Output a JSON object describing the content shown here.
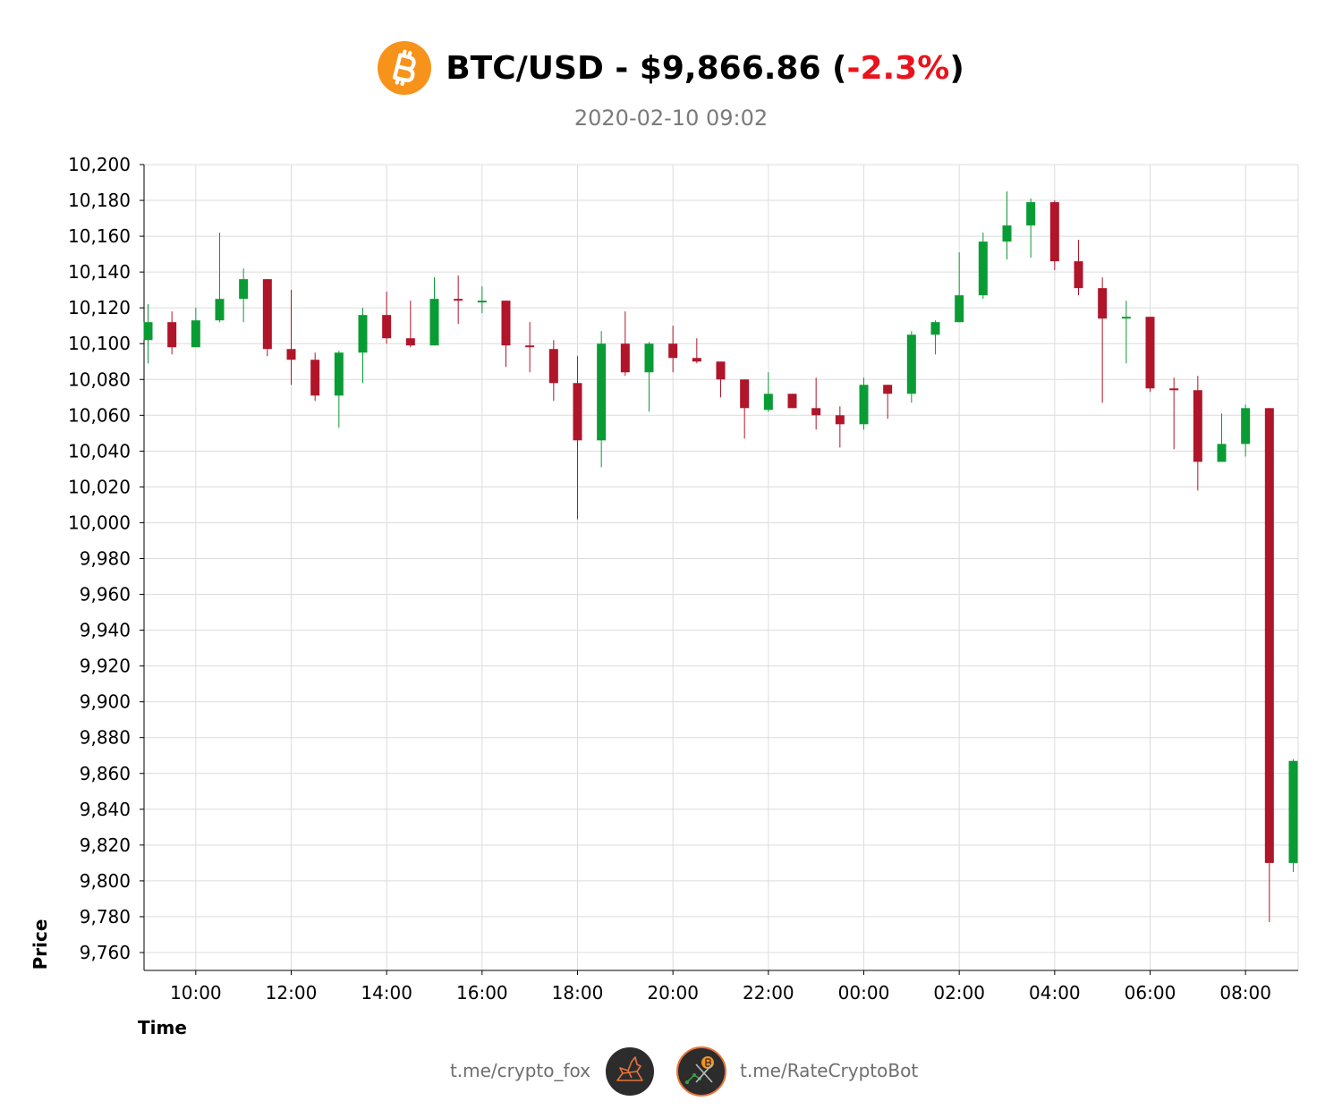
{
  "header": {
    "title_prefix": "BTC/USD - $9,866.86 (",
    "change": "-2.3%",
    "title_suffix": ")",
    "subtitle": "2020-02-10 09:02",
    "logo_icon": "bitcoin-logo-icon",
    "logo_color": "#f7931a",
    "negative_color": "#e8141c"
  },
  "footer": {
    "left_link": "t.me/crypto_fox",
    "right_link": "t.me/RateCryptoBot",
    "left_icon": "fox-avatar-icon",
    "right_icon": "rate-crypto-bot-avatar-icon"
  },
  "chart_data": {
    "type": "candlestick",
    "xlabel": "Time",
    "ylabel": "Price",
    "ylim": [
      9750,
      10200
    ],
    "x_ticks": [
      "10:00",
      "12:00",
      "14:00",
      "16:00",
      "18:00",
      "20:00",
      "22:00",
      "00:00",
      "02:00",
      "04:00",
      "06:00",
      "08:00"
    ],
    "y_ticks": [
      "10,200",
      "10,180",
      "10,160",
      "10,140",
      "10,120",
      "10,100",
      "10,080",
      "10,060",
      "10,040",
      "10,020",
      "10,000",
      "9,980",
      "9,960",
      "9,940",
      "9,920",
      "9,900",
      "9,880",
      "9,860",
      "9,840",
      "9,820",
      "9,800",
      "9,780",
      "9,760"
    ],
    "grid": true,
    "up_color": "#0a9c34",
    "down_color": "#b0152a",
    "candles": [
      {
        "time": "2020-02-09 09:00",
        "open": 10102,
        "high": 10122,
        "low": 10089,
        "close": 10112
      },
      {
        "time": "2020-02-09 09:30",
        "open": 10112,
        "high": 10118,
        "low": 10094,
        "close": 10098
      },
      {
        "time": "2020-02-09 10:00",
        "open": 10098,
        "high": 10120,
        "low": 10098,
        "close": 10113
      },
      {
        "time": "2020-02-09 10:30",
        "open": 10113,
        "high": 10162,
        "low": 10112,
        "close": 10125
      },
      {
        "time": "2020-02-09 11:00",
        "open": 10125,
        "high": 10142,
        "low": 10112,
        "close": 10136
      },
      {
        "time": "2020-02-09 11:30",
        "open": 10136,
        "high": 10136,
        "low": 10093,
        "close": 10097
      },
      {
        "time": "2020-02-09 12:00",
        "open": 10097,
        "high": 10130,
        "low": 10077,
        "close": 10091
      },
      {
        "time": "2020-02-09 12:30",
        "open": 10091,
        "high": 10095,
        "low": 10068,
        "close": 10071
      },
      {
        "time": "2020-02-09 13:00",
        "open": 10071,
        "high": 10096,
        "low": 10053,
        "close": 10095
      },
      {
        "time": "2020-02-09 13:30",
        "open": 10095,
        "high": 10120,
        "low": 10078,
        "close": 10116
      },
      {
        "time": "2020-02-09 14:00",
        "open": 10116,
        "high": 10129,
        "low": 10100,
        "close": 10103
      },
      {
        "time": "2020-02-09 14:30",
        "open": 10103,
        "high": 10124,
        "low": 10098,
        "close": 10099
      },
      {
        "time": "2020-02-09 15:00",
        "open": 10099,
        "high": 10137,
        "low": 10099,
        "close": 10125
      },
      {
        "time": "2020-02-09 15:30",
        "open": 10125,
        "high": 10138,
        "low": 10111,
        "close": 10124
      },
      {
        "time": "2020-02-09 16:00",
        "open": 10124,
        "high": 10132,
        "low": 10117,
        "close": 10124
      },
      {
        "time": "2020-02-09 16:30",
        "open": 10124,
        "high": 10124,
        "low": 10087,
        "close": 10099
      },
      {
        "time": "2020-02-09 17:00",
        "open": 10099,
        "high": 10112,
        "low": 10084,
        "close": 10098
      },
      {
        "time": "2020-02-09 17:30",
        "open": 10097,
        "high": 10102,
        "low": 10068,
        "close": 10078
      },
      {
        "time": "2020-02-09 18:00",
        "open": 10078,
        "high": 10093,
        "low": 10002,
        "close": 10046
      },
      {
        "time": "2020-02-09 18:30",
        "open": 10046,
        "high": 10107,
        "low": 10031,
        "close": 10100
      },
      {
        "time": "2020-02-09 19:00",
        "open": 10100,
        "high": 10118,
        "low": 10082,
        "close": 10084
      },
      {
        "time": "2020-02-09 19:30",
        "open": 10084,
        "high": 10101,
        "low": 10062,
        "close": 10100
      },
      {
        "time": "2020-02-09 20:00",
        "open": 10100,
        "high": 10110,
        "low": 10084,
        "close": 10092
      },
      {
        "time": "2020-02-09 20:30",
        "open": 10092,
        "high": 10103,
        "low": 10089,
        "close": 10090
      },
      {
        "time": "2020-02-09 21:00",
        "open": 10090,
        "high": 10090,
        "low": 10070,
        "close": 10080
      },
      {
        "time": "2020-02-09 21:30",
        "open": 10080,
        "high": 10080,
        "low": 10047,
        "close": 10064
      },
      {
        "time": "2020-02-09 22:00",
        "open": 10063,
        "high": 10084,
        "low": 10062,
        "close": 10072
      },
      {
        "time": "2020-02-09 22:30",
        "open": 10072,
        "high": 10072,
        "low": 10064,
        "close": 10064
      },
      {
        "time": "2020-02-09 23:00",
        "open": 10064,
        "high": 10081,
        "low": 10052,
        "close": 10060
      },
      {
        "time": "2020-02-09 23:30",
        "open": 10060,
        "high": 10065,
        "low": 10042,
        "close": 10055
      },
      {
        "time": "2020-02-10 00:00",
        "open": 10055,
        "high": 10081,
        "low": 10052,
        "close": 10077
      },
      {
        "time": "2020-02-10 00:30",
        "open": 10077,
        "high": 10077,
        "low": 10058,
        "close": 10072
      },
      {
        "time": "2020-02-10 01:00",
        "open": 10072,
        "high": 10107,
        "low": 10067,
        "close": 10105
      },
      {
        "time": "2020-02-10 01:30",
        "open": 10105,
        "high": 10113,
        "low": 10094,
        "close": 10112
      },
      {
        "time": "2020-02-10 02:00",
        "open": 10112,
        "high": 10151,
        "low": 10112,
        "close": 10127
      },
      {
        "time": "2020-02-10 02:30",
        "open": 10127,
        "high": 10162,
        "low": 10125,
        "close": 10157
      },
      {
        "time": "2020-02-10 03:00",
        "open": 10157,
        "high": 10185,
        "low": 10147,
        "close": 10166
      },
      {
        "time": "2020-02-10 03:30",
        "open": 10166,
        "high": 10181,
        "low": 10148,
        "close": 10179
      },
      {
        "time": "2020-02-10 04:00",
        "open": 10179,
        "high": 10180,
        "low": 10141,
        "close": 10146
      },
      {
        "time": "2020-02-10 04:30",
        "open": 10146,
        "high": 10158,
        "low": 10127,
        "close": 10131
      },
      {
        "time": "2020-02-10 05:00",
        "open": 10131,
        "high": 10137,
        "low": 10067,
        "close": 10114
      },
      {
        "time": "2020-02-10 05:30",
        "open": 10114,
        "high": 10124,
        "low": 10089,
        "close": 10115
      },
      {
        "time": "2020-02-10 06:00",
        "open": 10115,
        "high": 10115,
        "low": 10073,
        "close": 10075
      },
      {
        "time": "2020-02-10 06:30",
        "open": 10075,
        "high": 10081,
        "low": 10041,
        "close": 10074
      },
      {
        "time": "2020-02-10 07:00",
        "open": 10074,
        "high": 10082,
        "low": 10018,
        "close": 10034
      },
      {
        "time": "2020-02-10 07:30",
        "open": 10034,
        "high": 10061,
        "low": 10034,
        "close": 10044
      },
      {
        "time": "2020-02-10 08:00",
        "open": 10044,
        "high": 10066,
        "low": 10037,
        "close": 10064
      },
      {
        "time": "2020-02-10 08:30",
        "open": 10064,
        "high": 10064,
        "low": 9777,
        "close": 9810
      },
      {
        "time": "2020-02-10 09:00",
        "open": 9810,
        "high": 9868,
        "low": 9805,
        "close": 9867
      }
    ]
  }
}
